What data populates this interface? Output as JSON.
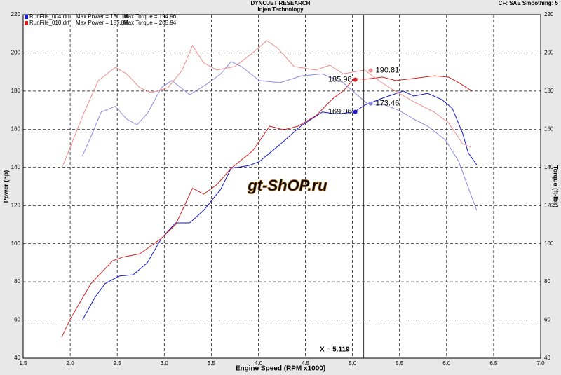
{
  "chart_data": {
    "type": "line",
    "title": "DYNOJET RESEARCH",
    "subtitle": "Injen Technology",
    "settings_label": "CF: SAE  Smoothing: 5",
    "x_label": "Engine Speed (RPM x1000)",
    "y_label": "Power (hp)",
    "y2_label": "Torque (ft-lbs)",
    "watermark": "gt-ShOP.ru",
    "grid": true,
    "xlim": [
      1.5,
      7.0
    ],
    "xticks": [
      {
        "value": 1.5,
        "label": "1.5"
      },
      {
        "value": 2.0,
        "label": "2.0"
      },
      {
        "value": 2.5,
        "label": "2.5"
      },
      {
        "value": 3.0,
        "label": "3.0"
      },
      {
        "value": 3.5,
        "label": "3.5"
      },
      {
        "value": 4.0,
        "label": "4.0"
      },
      {
        "value": 4.5,
        "label": "4.5"
      },
      {
        "value": 5.0,
        "label": "5.0"
      },
      {
        "value": 5.5,
        "label": "5.5"
      },
      {
        "value": 6.0,
        "label": "6.0"
      },
      {
        "value": 6.5,
        "label": "6.5"
      },
      {
        "value": 7.0,
        "label": "7.0"
      }
    ],
    "ylim": [
      40,
      220
    ],
    "yticks": [
      40,
      60,
      80,
      100,
      120,
      140,
      160,
      180,
      200,
      220
    ],
    "y2lim": [
      40,
      220
    ],
    "y2ticks": [
      40,
      60,
      80,
      100,
      120,
      140,
      160,
      180,
      200,
      220
    ],
    "legend": [
      {
        "file": "RunFile_004.drf",
        "power": "Max Power = 180.16",
        "torque": "Max Torque = 194.96",
        "color": "#1a1acc"
      },
      {
        "file": "RunFile_010.drf",
        "power": "Max Power = 187.88",
        "torque": "Max Torque = 205.94",
        "color": "#d02020"
      }
    ],
    "series": [
      {
        "color": "#1a1acc",
        "x": [
          2.13,
          2.26,
          2.37,
          2.52,
          2.67,
          2.82,
          2.97,
          3.12,
          3.27,
          3.42,
          3.6,
          3.71,
          3.9,
          4.01,
          4.23,
          4.46,
          4.68,
          4.83,
          5.02,
          5.13,
          5.32,
          5.54,
          5.65,
          5.8,
          5.95,
          6.06,
          6.17,
          6.23,
          6.32
        ],
        "values": [
          60,
          71.6,
          79,
          83,
          83.7,
          90,
          102.8,
          110.9,
          110.9,
          117.5,
          128.5,
          139.5,
          141,
          143,
          152,
          162,
          169,
          168,
          169,
          172.6,
          176.3,
          180,
          177.4,
          178.8,
          175.5,
          171,
          158,
          147.6,
          141.4
        ]
      },
      {
        "color": "#d02020",
        "x": [
          1.91,
          2.0,
          2.22,
          2.45,
          2.56,
          2.74,
          2.97,
          3.12,
          3.3,
          3.42,
          3.56,
          3.71,
          3.94,
          4.12,
          4.27,
          4.42,
          4.61,
          4.79,
          4.9,
          5.02,
          5.13,
          5.32,
          5.46,
          5.65,
          5.87,
          6.02,
          6.13,
          6.27
        ],
        "values": [
          51,
          60.5,
          79,
          91,
          93,
          94.7,
          102.8,
          110,
          129,
          126,
          131,
          139.5,
          148.7,
          161.6,
          159.7,
          161.6,
          167,
          176,
          180,
          186.6,
          186.2,
          187.3,
          185.5,
          186.6,
          188,
          187.3,
          184.4,
          180
        ]
      },
      {
        "color": "#8a8ae6",
        "axis": "y2",
        "x": [
          2.13,
          2.22,
          2.33,
          2.48,
          2.6,
          2.71,
          2.82,
          2.97,
          3.08,
          3.27,
          3.45,
          3.6,
          3.71,
          3.82,
          4.01,
          4.23,
          4.46,
          4.68,
          4.9,
          5.16,
          5.35,
          5.5,
          5.65,
          5.8,
          5.99,
          6.13,
          6.25,
          6.32
        ],
        "values": [
          146,
          156,
          169,
          172,
          165.3,
          162.3,
          168.2,
          181.8,
          185.5,
          178.1,
          183.6,
          189,
          195.4,
          192.8,
          185.5,
          184.4,
          188,
          189,
          184.4,
          173.3,
          172.6,
          169.7,
          165.3,
          161.6,
          154.2,
          143,
          126.7,
          117.5
        ]
      },
      {
        "color": "#f08a8a",
        "axis": "y2",
        "x": [
          1.92,
          2.0,
          2.15,
          2.3,
          2.48,
          2.6,
          2.74,
          2.86,
          3.04,
          3.19,
          3.3,
          3.42,
          3.56,
          3.75,
          3.94,
          4.09,
          4.2,
          4.38,
          4.61,
          4.76,
          4.9,
          5.13,
          5.28,
          5.43,
          5.65,
          5.87,
          6.02,
          6.17,
          6.26
        ],
        "values": [
          140.6,
          150.6,
          169,
          185.5,
          192.4,
          189,
          181.8,
          179.2,
          181.8,
          191,
          203.8,
          194.7,
          191,
          192.8,
          200,
          206.4,
          202.7,
          192.8,
          191,
          193.5,
          189,
          191,
          185.5,
          180.7,
          174.4,
          168.9,
          163.4,
          152.4,
          150.6
        ]
      }
    ],
    "cursor": {
      "x": 5.119,
      "label": "X = 5.119",
      "values": [
        169.06,
        185.98,
        173.46,
        190.81
      ]
    }
  }
}
